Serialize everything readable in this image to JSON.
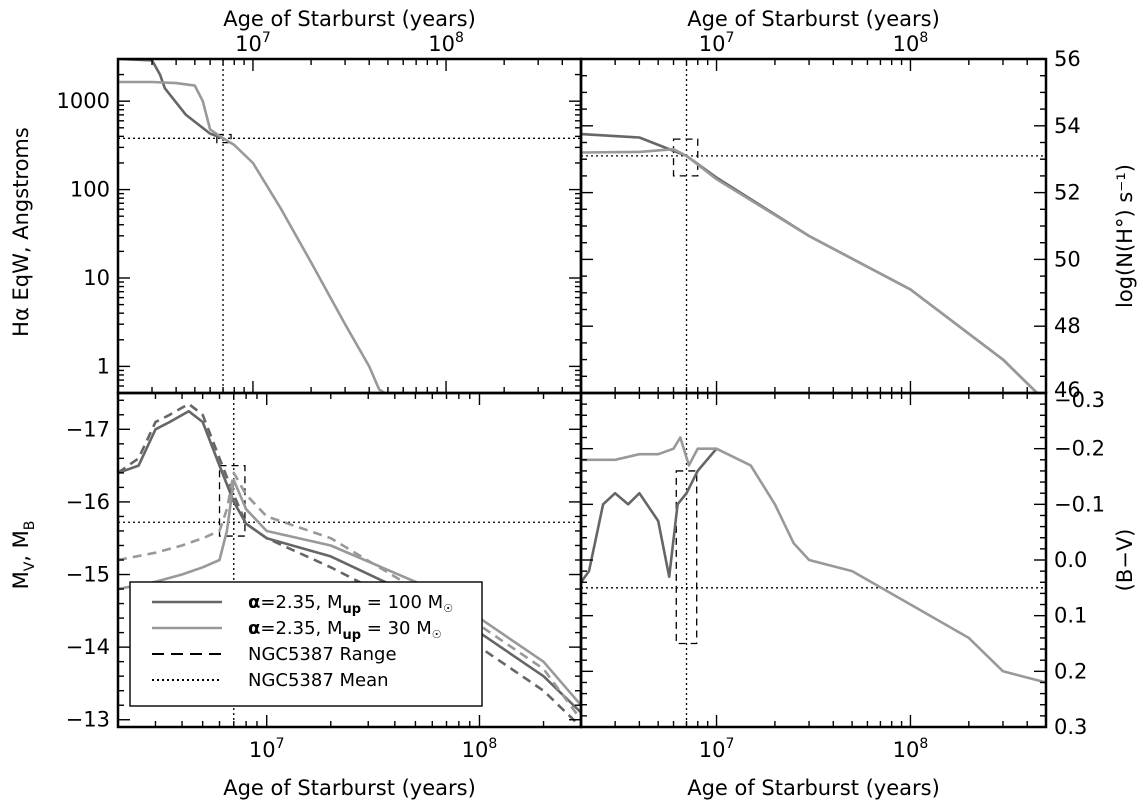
{
  "chart_data": [
    {
      "panel": "top-left",
      "type": "line",
      "xscale": "log",
      "yscale": "log",
      "xlim": [
        2000000,
        500000000
      ],
      "ylim": [
        0.5,
        3000
      ],
      "ylabel_part1": "Hα",
      "ylabel_part2": " EqW, Angstroms",
      "xlabel_top": "Age of Starburst (years)",
      "ytick_labels": [
        "1000",
        "100",
        "10",
        "1"
      ],
      "ytick_values": [
        1000,
        100,
        10,
        1
      ],
      "series": [
        {
          "name": "α=2.35, Mup = 100 M☉",
          "color": "#666666",
          "dash": "solid",
          "x": [
            2000000,
            3000000,
            3300000,
            3500000,
            4500000,
            6000000,
            7000000
          ],
          "y": [
            3000,
            2900,
            2000,
            1400,
            700,
            430,
            380
          ]
        },
        {
          "name": "α=2.35, Mup = 30 M☉",
          "color": "#999999",
          "dash": "solid",
          "x": [
            2000000,
            3000000,
            4000000,
            5000000,
            5500000,
            6000000,
            7000000,
            8000000,
            10000000,
            14000000,
            20000000,
            30000000,
            40000000,
            45000000,
            48000000
          ],
          "y": [
            1650,
            1650,
            1600,
            1500,
            1000,
            480,
            380,
            320,
            200,
            60,
            15,
            3,
            1,
            0.55,
            0.5
          ]
        }
      ],
      "references": [
        {
          "name": "NGC5387 Mean",
          "axis": "y",
          "value": 380
        },
        {
          "name": "NGC5387 Mean",
          "axis": "x",
          "value": 7000000
        }
      ],
      "range_box": {
        "x": [
          6500000,
          7700000
        ],
        "y": [
          340,
          420
        ]
      }
    },
    {
      "panel": "top-right",
      "type": "line",
      "xscale": "log",
      "yscale": "linear",
      "xlim": [
        2000000,
        500000000
      ],
      "ylim": [
        46,
        56
      ],
      "ylabel": "log(N(H°) s⁻¹)",
      "xlabel_top": "Age of Starburst (years)",
      "ytick_labels": [
        "56",
        "54",
        "52",
        "50",
        "48",
        "46"
      ],
      "ytick_values": [
        56,
        54,
        52,
        50,
        48,
        46
      ],
      "series": [
        {
          "name": "α=2.35, Mup = 100 M☉",
          "color": "#666666",
          "dash": "solid",
          "x": [
            2000000,
            4000000,
            7000000,
            10000000,
            30000000,
            100000000,
            300000000,
            450000000
          ],
          "y": [
            53.75,
            53.65,
            53.1,
            52.45,
            50.7,
            49.1,
            47.0,
            46.0
          ]
        },
        {
          "name": "α=2.35, Mup = 30 M☉",
          "color": "#999999",
          "dash": "solid",
          "x": [
            2000000,
            4000000,
            6000000,
            7000000,
            10000000,
            30000000,
            100000000,
            300000000,
            450000000
          ],
          "y": [
            53.2,
            53.22,
            53.3,
            53.1,
            52.4,
            50.7,
            49.1,
            47.0,
            46.0
          ]
        }
      ],
      "references": [
        {
          "name": "NGC5387 Mean",
          "axis": "y",
          "value": 53.1
        },
        {
          "name": "NGC5387 Mean",
          "axis": "x",
          "value": 7000000
        }
      ],
      "range_box": {
        "x": [
          6000000,
          8000000
        ],
        "y": [
          52.5,
          53.6
        ]
      }
    },
    {
      "panel": "bottom-left",
      "type": "line",
      "xscale": "log",
      "yscale": "linear-inverted",
      "xlim": [
        2000000,
        300000000
      ],
      "ylim": [
        -17.5,
        -12.9
      ],
      "ylabel": "MV, MB",
      "xlabel": "Age of Starburst (years)",
      "xtick_labels": [
        "10^7",
        "10^8"
      ],
      "xtick_values": [
        10000000,
        100000000
      ],
      "ytick_labels": [
        "-17",
        "-16",
        "-15",
        "-14",
        "-13"
      ],
      "ytick_values": [
        -17,
        -16,
        -15,
        -14,
        -13
      ],
      "series": [
        {
          "name": "α=2.35, Mup = 100 M☉ (MV)",
          "color": "#666666",
          "dash": "solid",
          "x": [
            2000000,
            2500000,
            3000000,
            3500000,
            4300000,
            5000000,
            6000000,
            7000000,
            8000000,
            10000000,
            20000000,
            50000000,
            100000000,
            200000000,
            300000000
          ],
          "y": [
            -16.4,
            -16.5,
            -17.0,
            -17.1,
            -17.25,
            -17.1,
            -16.5,
            -16.0,
            -15.7,
            -15.5,
            -15.25,
            -14.7,
            -14.2,
            -13.6,
            -13.1
          ]
        },
        {
          "name": "α=2.35, Mup = 100 M☉ (MB)",
          "color": "#666666",
          "dash": "dashed",
          "x": [
            2000000,
            2500000,
            3000000,
            3500000,
            4300000,
            5000000,
            6000000,
            7000000,
            8000000,
            10000000,
            20000000,
            50000000,
            100000000,
            200000000,
            300000000
          ],
          "y": [
            -16.4,
            -16.6,
            -17.1,
            -17.2,
            -17.35,
            -17.2,
            -16.6,
            -16.1,
            -15.7,
            -15.5,
            -15.1,
            -14.5,
            -14.0,
            -13.4,
            -12.9
          ]
        },
        {
          "name": "α=2.35, Mup = 30 M☉ (MV)",
          "color": "#999999",
          "dash": "solid",
          "x": [
            2000000,
            3000000,
            4000000,
            5000000,
            6000000,
            6500000,
            7000000,
            8000000,
            10000000,
            20000000,
            50000000,
            100000000,
            200000000,
            300000000
          ],
          "y": [
            -14.8,
            -14.9,
            -15.0,
            -15.1,
            -15.2,
            -15.6,
            -16.3,
            -15.9,
            -15.6,
            -15.4,
            -14.9,
            -14.4,
            -13.8,
            -13.2
          ]
        },
        {
          "name": "α=2.35, Mup = 30 M☉ (MB)",
          "color": "#999999",
          "dash": "dashed",
          "x": [
            2000000,
            3000000,
            4000000,
            5000000,
            6000000,
            6500000,
            7000000,
            8000000,
            10000000,
            20000000,
            50000000,
            100000000,
            200000000,
            300000000
          ],
          "y": [
            -15.2,
            -15.3,
            -15.4,
            -15.5,
            -15.6,
            -15.9,
            -16.4,
            -16.1,
            -15.8,
            -15.5,
            -14.8,
            -14.3,
            -13.7,
            -13.0
          ]
        }
      ],
      "references": [
        {
          "name": "NGC5387 Mean",
          "axis": "y",
          "value": -15.72
        },
        {
          "name": "NGC5387 Mean",
          "axis": "x",
          "value": 7000000
        }
      ],
      "range_box": {
        "x": [
          6000000,
          7900000
        ],
        "y": [
          -15.53,
          -16.5
        ]
      }
    },
    {
      "panel": "bottom-right",
      "type": "line",
      "xscale": "log",
      "yscale": "linear-inverted",
      "xlim": [
        2000000,
        500000000
      ],
      "ylim": [
        -0.3,
        0.3
      ],
      "ylabel": "(B−V)",
      "xlabel": "Age of Starburst (years)",
      "xtick_labels": [
        "10^7",
        "10^8"
      ],
      "xtick_values": [
        10000000,
        100000000
      ],
      "ytick_labels": [
        "-0.3",
        "-0.2",
        "-0.1",
        "0.0",
        "0.1",
        "0.2",
        "0.3"
      ],
      "ytick_values": [
        -0.3,
        -0.2,
        -0.1,
        0.0,
        0.1,
        0.2,
        0.3
      ],
      "series": [
        {
          "name": "α=2.35, Mup = 100 M☉",
          "color": "#666666",
          "dash": "solid",
          "x": [
            2000000,
            2200000,
            2600000,
            3000000,
            3500000,
            4000000,
            5000000,
            5700000,
            6300000,
            7000000,
            8000000,
            10000000
          ],
          "y": [
            0.04,
            0.02,
            -0.1,
            -0.12,
            -0.1,
            -0.12,
            -0.07,
            0.03,
            -0.1,
            -0.12,
            -0.16,
            -0.2
          ]
        },
        {
          "name": "α=2.35, Mup = 30 M☉",
          "color": "#999999",
          "dash": "solid",
          "x": [
            2000000,
            3000000,
            4000000,
            5000000,
            6000000,
            6500000,
            7200000,
            8000000,
            10000000,
            15000000,
            20000000,
            25000000,
            30000000,
            50000000,
            100000000,
            200000000,
            300000000,
            500000000
          ],
          "y": [
            -0.18,
            -0.18,
            -0.19,
            -0.19,
            -0.2,
            -0.22,
            -0.17,
            -0.2,
            -0.2,
            -0.17,
            -0.1,
            -0.03,
            0.0,
            0.02,
            0.08,
            0.14,
            0.2,
            0.22
          ]
        }
      ],
      "references": [
        {
          "name": "NGC5387 Mean",
          "axis": "y",
          "value": 0.05
        },
        {
          "name": "NGC5387 Mean",
          "axis": "x",
          "value": 7000000
        }
      ],
      "range_box": {
        "x": [
          6200000,
          7900000
        ],
        "y": [
          -0.16,
          0.15
        ]
      }
    }
  ],
  "legend": {
    "placement": "bottom-left panel, lower-left",
    "entries": [
      {
        "alpha": "α",
        "eq": "=2.35, M",
        "sub": "up",
        "rest": " =  100 M",
        "sun": "☉",
        "style": "solid",
        "color": "#666666"
      },
      {
        "alpha": "α",
        "eq": "=2.35, M",
        "sub": "up",
        "rest": " =   30 M",
        "sun": "☉",
        "style": "solid",
        "color": "#999999"
      },
      {
        "text": "NGC5387 Range",
        "style": "dashed",
        "color": "#000000"
      },
      {
        "text": "NGC5387 Mean",
        "style": "dotted",
        "color": "#000000"
      }
    ]
  }
}
